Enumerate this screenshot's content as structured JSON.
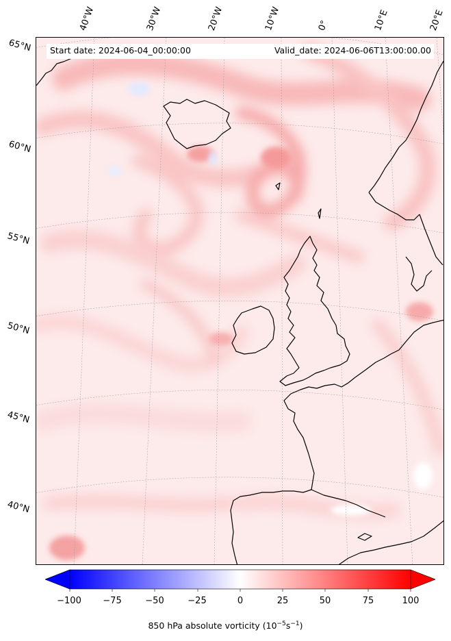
{
  "header": {
    "start_date": "Start date: 2024-06-04_00:00:00",
    "valid_date": "Valid_date: 2024-06-06T13:00:00.00"
  },
  "map": {
    "projection": "conic",
    "region": "North Atlantic / Western Europe",
    "field": "850 hPa absolute vorticity",
    "longitude_labels": [
      "40°W",
      "30°W",
      "20°W",
      "10°W",
      "0°",
      "10°E",
      "20°E"
    ],
    "latitude_labels": [
      "65°N",
      "60°N",
      "55°N",
      "50°N",
      "45°N",
      "40°N"
    ],
    "gridlines": true,
    "coastlines": true,
    "colors": {
      "background_field": "#fdeaea",
      "mid_field": "#fbd3d3",
      "strong_positive": "#f7a3a3",
      "negative": "#e4eaff",
      "coastline": "#000000",
      "gridline": "#9a9a9a"
    }
  },
  "colorbar": {
    "colormap": "bwr",
    "min": -100,
    "max": 100,
    "ticks": [
      "−100",
      "−75",
      "−50",
      "−25",
      "0",
      "25",
      "50",
      "75",
      "100"
    ],
    "label_text": "850 hPa absolute vorticity (",
    "label_unit_base": "10",
    "label_unit_exp": "−5",
    "label_unit_mid": "s",
    "label_unit_exp2": "−1",
    "label_close": ")",
    "extend": "both"
  }
}
